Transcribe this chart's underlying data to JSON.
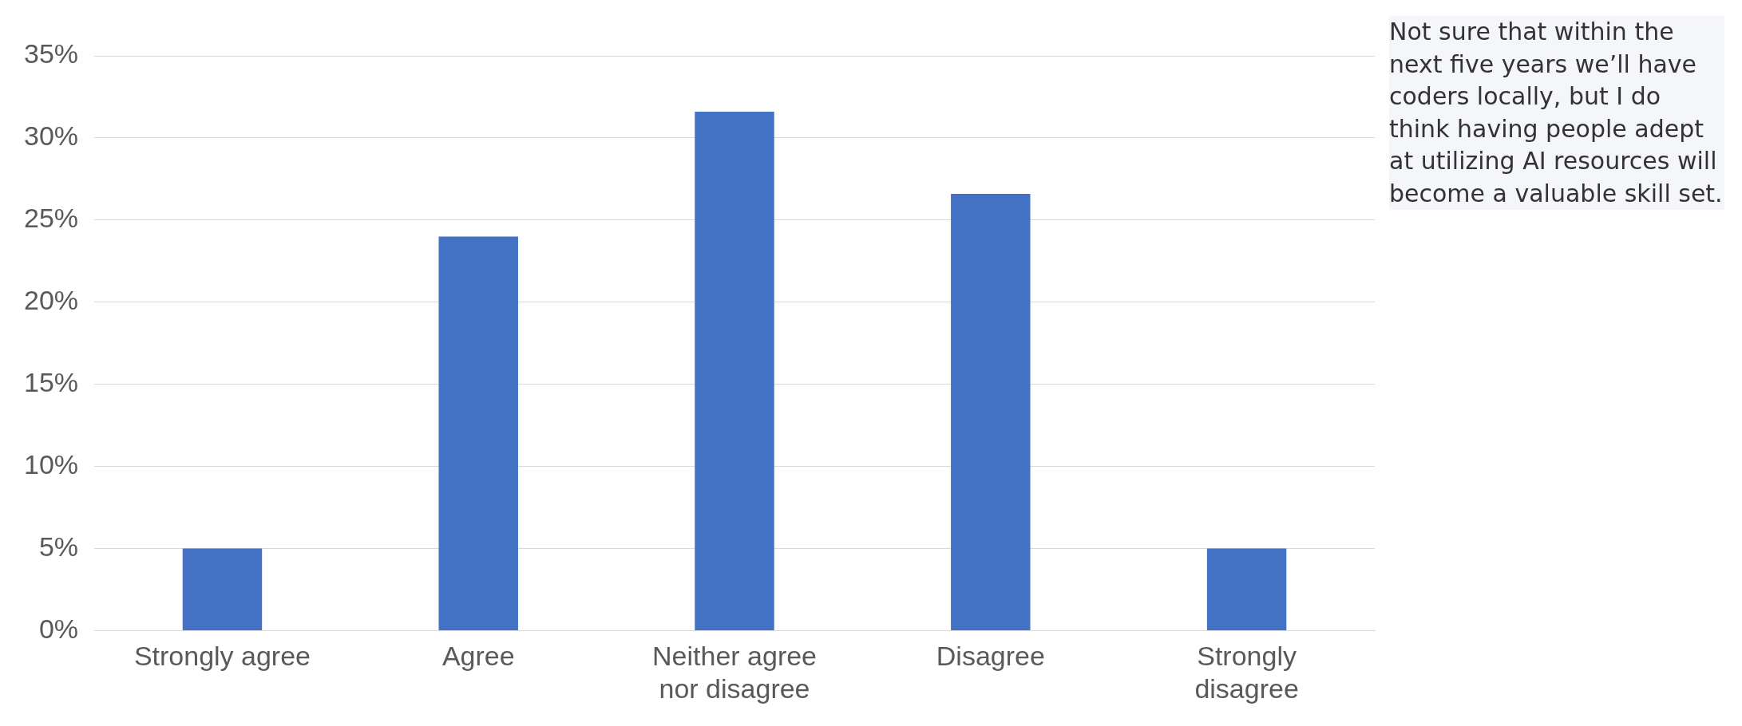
{
  "chart_data": {
    "type": "bar",
    "categories": [
      "Strongly agree",
      "Agree",
      "Neither agree nor disagree",
      "Disagree",
      "Strongly disagree"
    ],
    "values": [
      5,
      24,
      31.6,
      26.6,
      5
    ],
    "color": "#4472c4",
    "ylim": [
      0,
      35
    ],
    "yticks": [
      {
        "value": 0,
        "label": "0%"
      },
      {
        "value": 5,
        "label": "5%"
      },
      {
        "value": 10,
        "label": "10%"
      },
      {
        "value": 15,
        "label": "15%"
      },
      {
        "value": 20,
        "label": "20%"
      },
      {
        "value": 25,
        "label": "25%"
      },
      {
        "value": 30,
        "label": "30%"
      },
      {
        "value": 35,
        "label": "35%"
      }
    ],
    "grid": "y",
    "legend": false,
    "annotations": [
      "Not sure that within the next five years we’ll have coders locally, but I do think having people adept at utilizing AI resources will become a valuable skill set."
    ]
  }
}
